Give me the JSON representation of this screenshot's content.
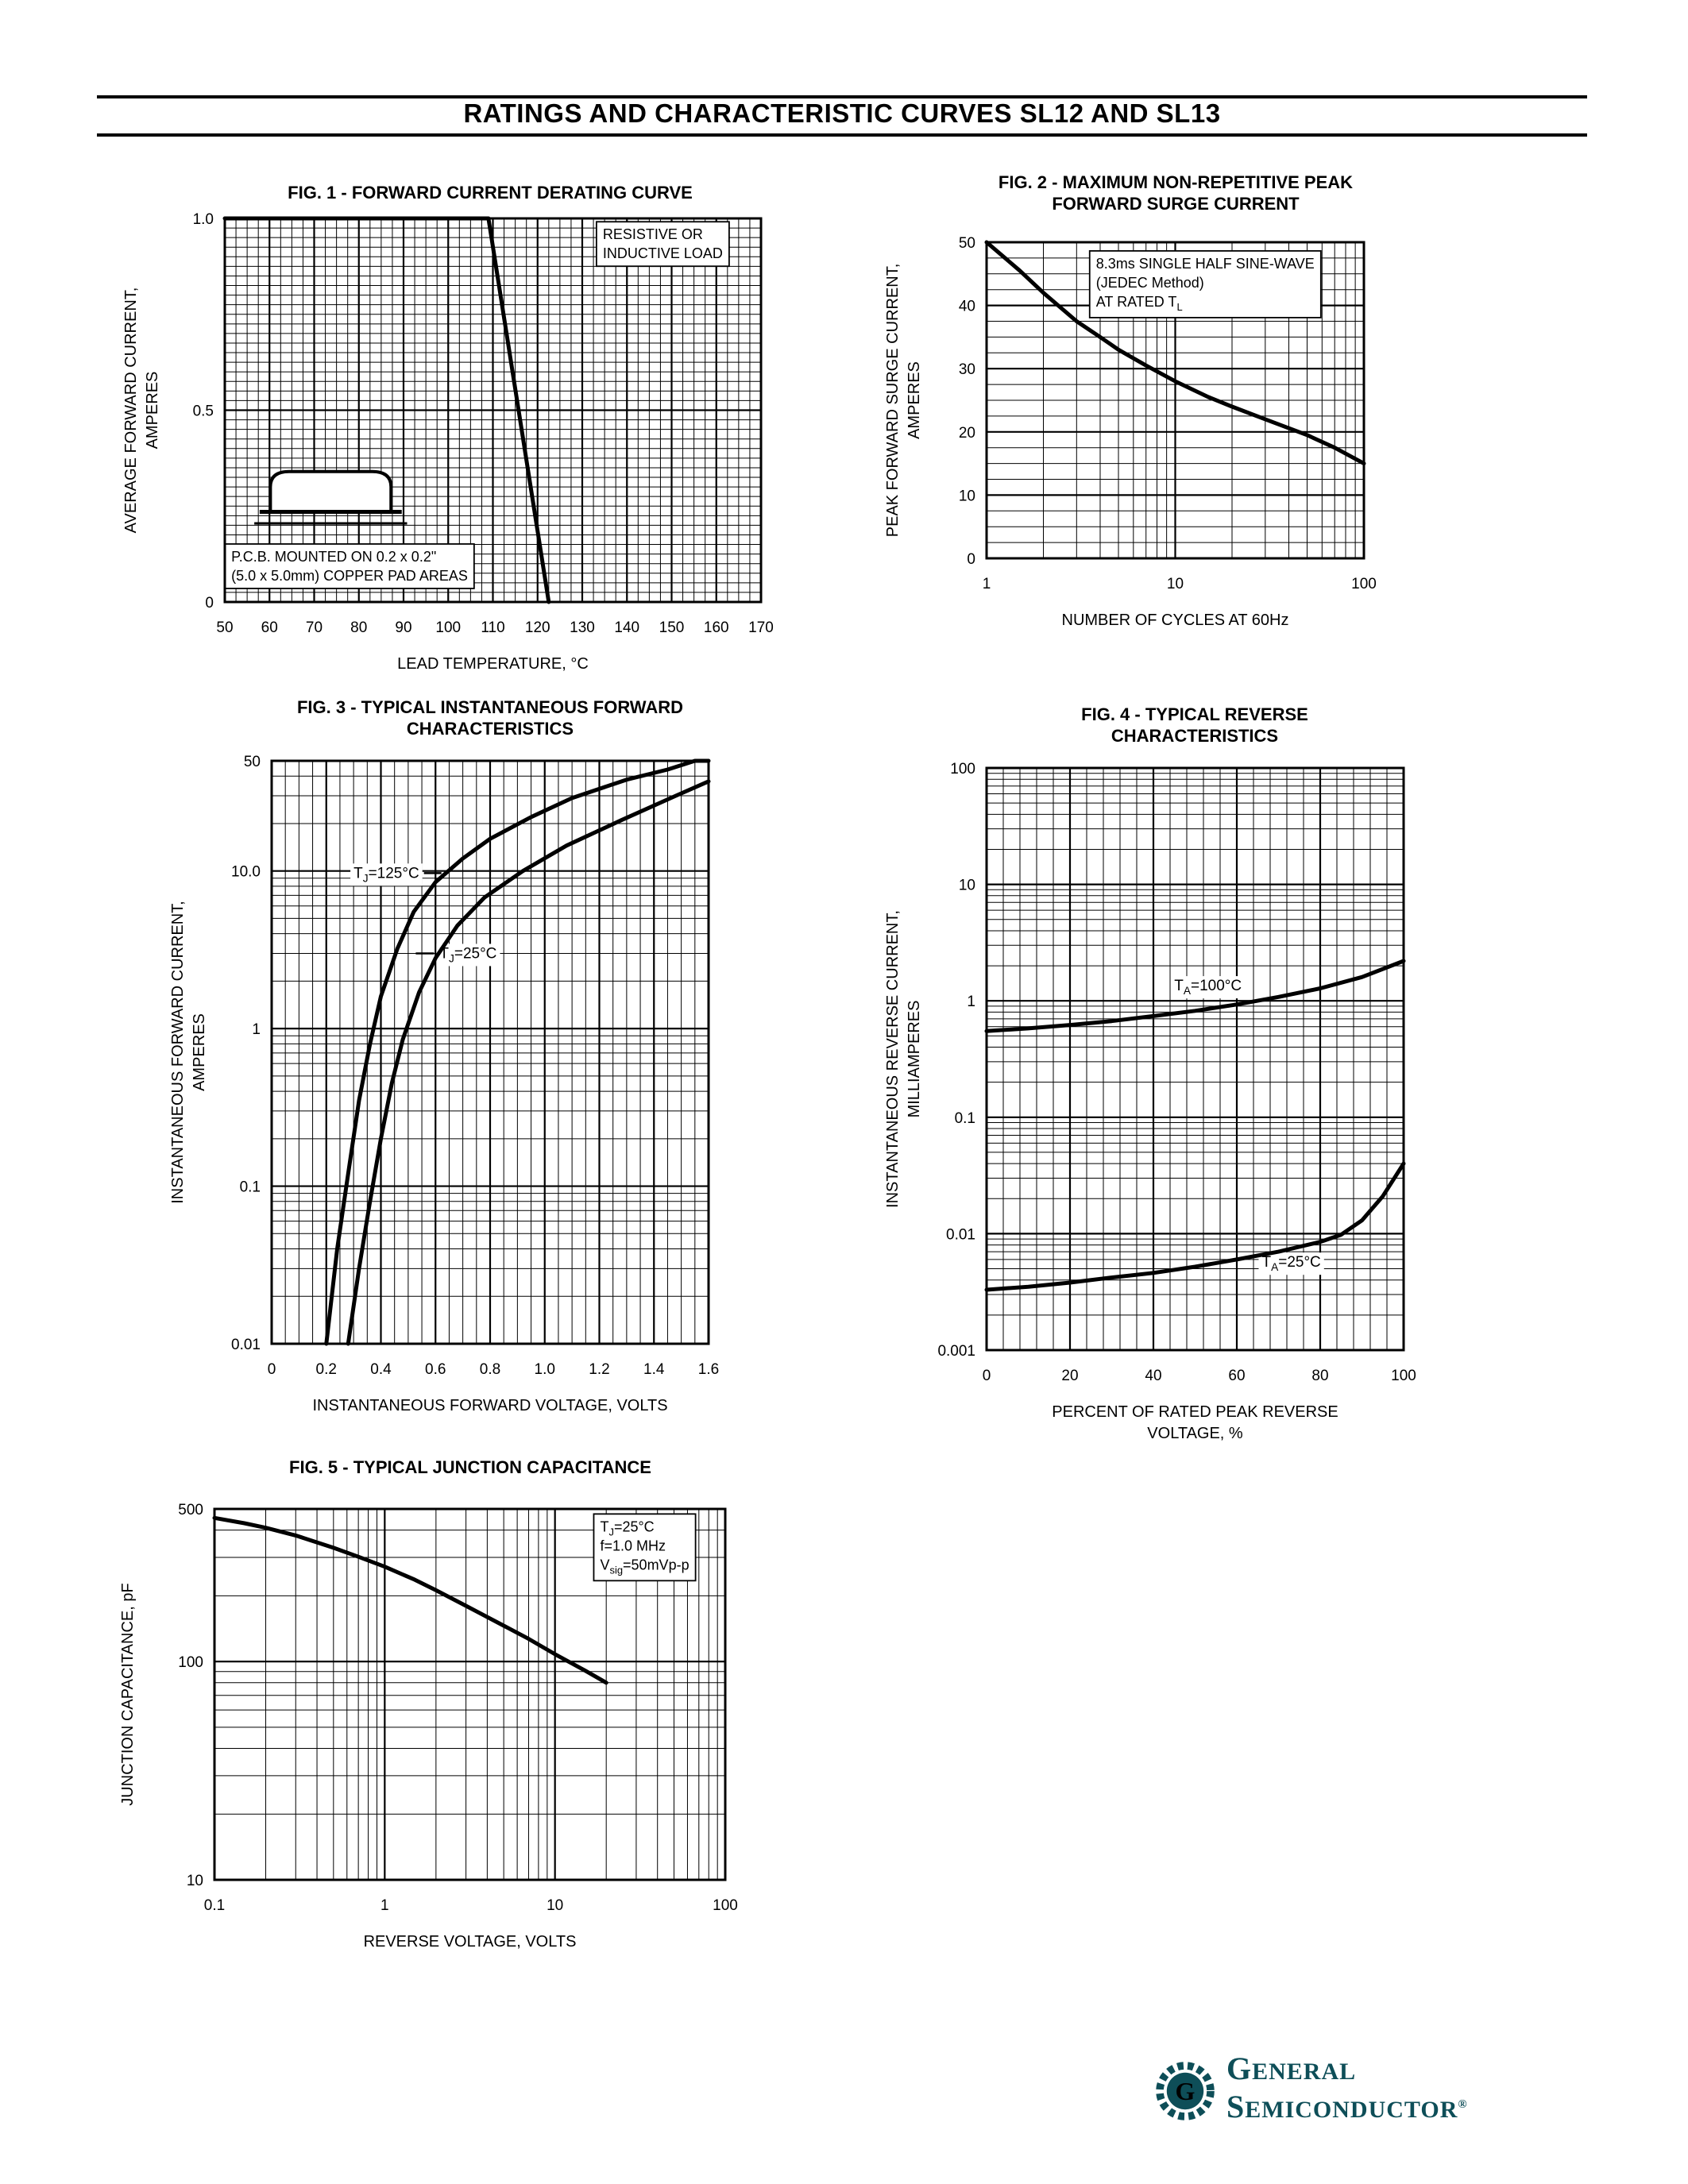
{
  "page": {
    "header_title": "RATINGS AND CHARACTERISTIC CURVES SL12 AND SL13"
  },
  "logo": {
    "general_initial": "G",
    "general_rest": "ENERAL",
    "semiconductor_initial": "S",
    "semiconductor_rest": "EMICONDUCTOR",
    "registered": "®",
    "color": "#0e4e58"
  },
  "chart_data": [
    {
      "id": "fig1",
      "type": "line",
      "title": "FIG. 1 - FORWARD CURRENT DERATING CURVE",
      "xlabel": "LEAD TEMPERATURE, °C",
      "ylabel": "AVERAGE FORWARD CURRENT,\nAMPERES",
      "x": {
        "scale": "linear",
        "min": 50,
        "max": 170,
        "ticks": [
          50,
          60,
          70,
          80,
          90,
          100,
          110,
          120,
          130,
          140,
          150,
          160,
          170
        ],
        "tick_labels": [
          "50",
          "60",
          "70",
          "80",
          "90",
          "100",
          "110",
          "120",
          "130",
          "140",
          "150",
          "160",
          "170"
        ],
        "minor_step": 2.5
      },
      "y": {
        "scale": "linear",
        "min": 0,
        "max": 1.0,
        "ticks": [
          0,
          0.5,
          1.0
        ],
        "tick_labels": [
          "0",
          "0.5",
          "1.0"
        ],
        "minor_step": 0.025
      },
      "series": [
        {
          "name": "derating",
          "points": [
            [
              50,
              1.0
            ],
            [
              109,
              1.0
            ],
            [
              122.5,
              0
            ]
          ]
        }
      ],
      "annotations": [
        {
          "text": "RESISTIVE OR\nINDUCTIVE LOAD",
          "fx": 0.705,
          "fy": 0.015,
          "boxed": true
        },
        {
          "text": "P.C.B. MOUNTED ON 0.2 x 0.2\"\n(5.0 x 5.0mm) COPPER PAD AREAS",
          "fx": 0.012,
          "fy": 0.855,
          "boxed": true
        }
      ],
      "package_drawing": true
    },
    {
      "id": "fig2",
      "type": "line",
      "title": "FIG. 2 - MAXIMUM NON-REPETITIVE PEAK\nFORWARD SURGE CURRENT",
      "xlabel": "NUMBER OF CYCLES AT 60Hz",
      "ylabel": "PEAK FORWARD SURGE CURRENT,\nAMPERES",
      "x": {
        "scale": "log",
        "min": 1,
        "max": 100,
        "ticks": [
          1,
          10,
          100
        ],
        "tick_labels": [
          "1",
          "10",
          "100"
        ]
      },
      "y": {
        "scale": "linear",
        "min": 0,
        "max": 50,
        "ticks": [
          0,
          10,
          20,
          30,
          40,
          50
        ],
        "tick_labels": [
          "0",
          "10",
          "20",
          "30",
          "40",
          "50"
        ],
        "minor_step": 2.5
      },
      "series": [
        {
          "name": "surge",
          "points": [
            [
              1,
              50
            ],
            [
              1.5,
              45.5
            ],
            [
              2,
              42
            ],
            [
              3,
              37.5
            ],
            [
              4,
              35
            ],
            [
              5,
              33
            ],
            [
              7,
              30.5
            ],
            [
              10,
              28
            ],
            [
              15,
              25.5
            ],
            [
              20,
              24
            ],
            [
              30,
              22
            ],
            [
              50,
              19.5
            ],
            [
              70,
              17.5
            ],
            [
              100,
              15
            ]
          ]
        }
      ],
      "annotations": [
        {
          "text": "8.3ms SINGLE HALF SINE-WAVE\n(JEDEC Method)\nAT RATED T{L}",
          "fx": 0.29,
          "fy": 0.035,
          "boxed": true
        }
      ]
    },
    {
      "id": "fig3",
      "type": "line",
      "title": "FIG. 3 - TYPICAL INSTANTANEOUS FORWARD\nCHARACTERISTICS",
      "xlabel": "INSTANTANEOUS FORWARD VOLTAGE, VOLTS",
      "ylabel": "INSTANTANEOUS FORWARD CURRENT,\nAMPERES",
      "x": {
        "scale": "linear",
        "min": 0,
        "max": 1.6,
        "ticks": [
          0,
          0.2,
          0.4,
          0.6,
          0.8,
          1.0,
          1.2,
          1.4,
          1.6
        ],
        "tick_labels": [
          "0",
          "0.2",
          "0.4",
          "0.6",
          "0.8",
          "1.0",
          "1.2",
          "1.4",
          "1.6"
        ],
        "minor_step": 0.05
      },
      "y": {
        "scale": "log",
        "min": 0.01,
        "max": 50,
        "ticks": [
          50,
          10,
          1,
          0.1,
          0.01
        ],
        "tick_labels": [
          "50",
          "10.0",
          "1",
          "0.1",
          "0.01"
        ]
      },
      "series": [
        {
          "name": "TJ125",
          "label": "T{J}=125°C",
          "label_at": [
            0.3,
            9.7
          ],
          "leader": "right",
          "points": [
            [
              0.2,
              0.01
            ],
            [
              0.24,
              0.04
            ],
            [
              0.28,
              0.12
            ],
            [
              0.32,
              0.35
            ],
            [
              0.36,
              0.8
            ],
            [
              0.4,
              1.6
            ],
            [
              0.46,
              3.2
            ],
            [
              0.52,
              5.5
            ],
            [
              0.6,
              8.5
            ],
            [
              0.7,
              12
            ],
            [
              0.8,
              16
            ],
            [
              0.95,
              22
            ],
            [
              1.1,
              29
            ],
            [
              1.3,
              38
            ],
            [
              1.45,
              44
            ],
            [
              1.55,
              50
            ],
            [
              1.6,
              50
            ]
          ]
        },
        {
          "name": "TJ25",
          "label": "T{J}=25°C",
          "label_at": [
            0.615,
            3.0
          ],
          "leader": "left",
          "points": [
            [
              0.28,
              0.01
            ],
            [
              0.32,
              0.03
            ],
            [
              0.36,
              0.08
            ],
            [
              0.4,
              0.2
            ],
            [
              0.44,
              0.45
            ],
            [
              0.48,
              0.85
            ],
            [
              0.54,
              1.7
            ],
            [
              0.6,
              2.8
            ],
            [
              0.68,
              4.5
            ],
            [
              0.78,
              6.8
            ],
            [
              0.92,
              10
            ],
            [
              1.08,
              14.5
            ],
            [
              1.28,
              21
            ],
            [
              1.48,
              30
            ],
            [
              1.6,
              37
            ]
          ]
        }
      ],
      "annotations": []
    },
    {
      "id": "fig4",
      "type": "line",
      "title": "FIG. 4 - TYPICAL REVERSE\nCHARACTERISTICS",
      "xlabel": "PERCENT OF RATED PEAK REVERSE\nVOLTAGE, %",
      "ylabel": "INSTANTANEOUS REVERSE CURRENT,\nMILLIAMPERES",
      "x": {
        "scale": "linear",
        "min": 0,
        "max": 100,
        "ticks": [
          0,
          20,
          40,
          60,
          80,
          100
        ],
        "tick_labels": [
          "0",
          "20",
          "40",
          "60",
          "80",
          "100"
        ],
        "minor_step": 4
      },
      "y": {
        "scale": "log",
        "min": 0.001,
        "max": 100,
        "ticks": [
          100,
          10,
          1,
          0.1,
          0.01,
          0.001
        ],
        "tick_labels": [
          "100",
          "10",
          "1",
          "0.1",
          "0.01",
          "0.001"
        ]
      },
      "series": [
        {
          "name": "TA100",
          "label": "T{A}=100°C",
          "label_at": [
            45,
            1.35
          ],
          "leader": "none",
          "points": [
            [
              0,
              0.55
            ],
            [
              10,
              0.58
            ],
            [
              20,
              0.62
            ],
            [
              30,
              0.67
            ],
            [
              40,
              0.74
            ],
            [
              50,
              0.82
            ],
            [
              60,
              0.93
            ],
            [
              70,
              1.08
            ],
            [
              80,
              1.28
            ],
            [
              90,
              1.6
            ],
            [
              100,
              2.2
            ]
          ]
        },
        {
          "name": "TA25",
          "label": "T{A}=25°C",
          "label_at": [
            66,
            0.0057
          ],
          "leader": "none",
          "points": [
            [
              0,
              0.0033
            ],
            [
              10,
              0.0035
            ],
            [
              20,
              0.0038
            ],
            [
              30,
              0.0042
            ],
            [
              40,
              0.0046
            ],
            [
              50,
              0.0052
            ],
            [
              60,
              0.006
            ],
            [
              70,
              0.007
            ],
            [
              80,
              0.0085
            ],
            [
              85,
              0.0098
            ],
            [
              90,
              0.013
            ],
            [
              95,
              0.021
            ],
            [
              100,
              0.04
            ]
          ]
        }
      ],
      "annotations": []
    },
    {
      "id": "fig5",
      "type": "line",
      "title": "FIG. 5 - TYPICAL JUNCTION CAPACITANCE",
      "xlabel": "REVERSE VOLTAGE, VOLTS",
      "ylabel": "JUNCTION CAPACITANCE, pF",
      "x": {
        "scale": "log",
        "min": 0.1,
        "max": 100,
        "ticks": [
          0.1,
          1,
          10,
          100
        ],
        "tick_labels": [
          "0.1",
          "1",
          "10",
          "100"
        ]
      },
      "y": {
        "scale": "log",
        "min": 10,
        "max": 500,
        "ticks": [
          500,
          100,
          10
        ],
        "tick_labels": [
          "500",
          "100",
          "10"
        ]
      },
      "series": [
        {
          "name": "Cj",
          "points": [
            [
              0.1,
              455
            ],
            [
              0.15,
              430
            ],
            [
              0.2,
              410
            ],
            [
              0.3,
              378
            ],
            [
              0.5,
              332
            ],
            [
              0.7,
              302
            ],
            [
              1,
              272
            ],
            [
              1.5,
              237
            ],
            [
              2,
              212
            ],
            [
              3,
              180
            ],
            [
              5,
              146
            ],
            [
              7,
              127
            ],
            [
              10,
              108
            ],
            [
              15,
              91
            ],
            [
              20,
              80
            ]
          ]
        }
      ],
      "annotations": [
        {
          "text": "T{J}=25°C\nf=1.0 MHz\nV{sig}=50mVp-p",
          "fx": 0.755,
          "fy": 0.02,
          "boxed": true
        }
      ]
    }
  ]
}
